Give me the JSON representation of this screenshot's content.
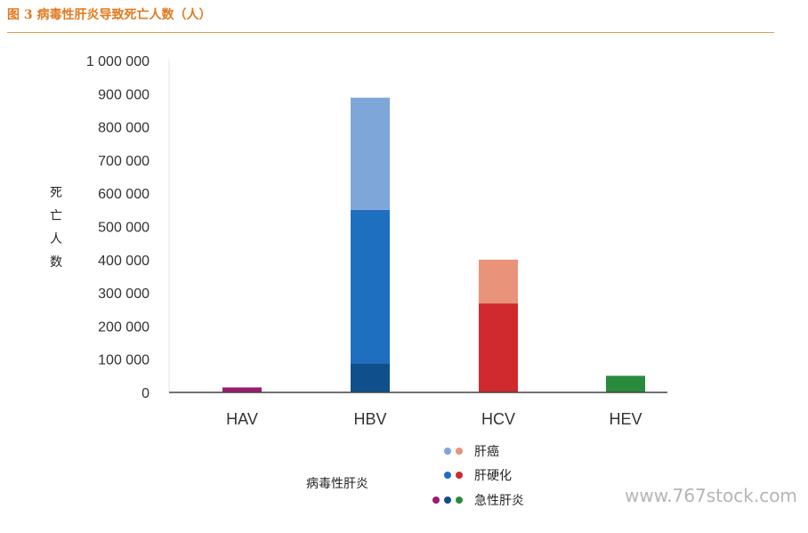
{
  "title": "图 3 病毒性肝炎导致死亡人数（人）",
  "watermark": "www.767stock.com",
  "chart_data": {
    "type": "bar",
    "stacked": true,
    "categories": [
      "HAV",
      "HBV",
      "HCV",
      "HEV"
    ],
    "ylabel": "死亡人数",
    "xlabel": "病毒性肝炎",
    "ylim": [
      0,
      1000000
    ],
    "yticks": [
      0,
      100000,
      200000,
      300000,
      400000,
      500000,
      600000,
      700000,
      800000,
      900000,
      1000000
    ],
    "ytick_labels": [
      "0",
      "100 000",
      "200 000",
      "300 000",
      "400 000",
      "500 000",
      "600 000",
      "700 000",
      "800 000",
      "900 000",
      "1 000 000"
    ],
    "series": [
      {
        "name": "急性肝炎",
        "values": [
          15000,
          88000,
          0,
          50000
        ],
        "colors": [
          "#9b1b6e",
          "#0e4f8c",
          "#d02a2f",
          "#2a8a3e"
        ]
      },
      {
        "name": "肝硬化",
        "values": [
          0,
          462000,
          268000,
          0
        ],
        "colors": [
          "#9b1b6e",
          "#1f6fc1",
          "#d02a2f",
          "#2a8a3e"
        ]
      },
      {
        "name": "肝癌",
        "values": [
          0,
          338000,
          132000,
          0
        ],
        "colors": [
          "#9b1b6e",
          "#7ea6d9",
          "#e8937a",
          "#2a8a3e"
        ]
      }
    ],
    "legend": {
      "placement": "bottom",
      "items": [
        {
          "label": "肝癌",
          "dots": [
            "#7ea6d9",
            "#e8937a"
          ]
        },
        {
          "label": "肝硬化",
          "dots": [
            "#1f6fc1",
            "#d02a2f"
          ]
        },
        {
          "label": "急性肝炎",
          "dots": [
            "#9b1b6e",
            "#0e4f8c",
            "#2a8a3e"
          ]
        }
      ]
    },
    "grid": false
  }
}
